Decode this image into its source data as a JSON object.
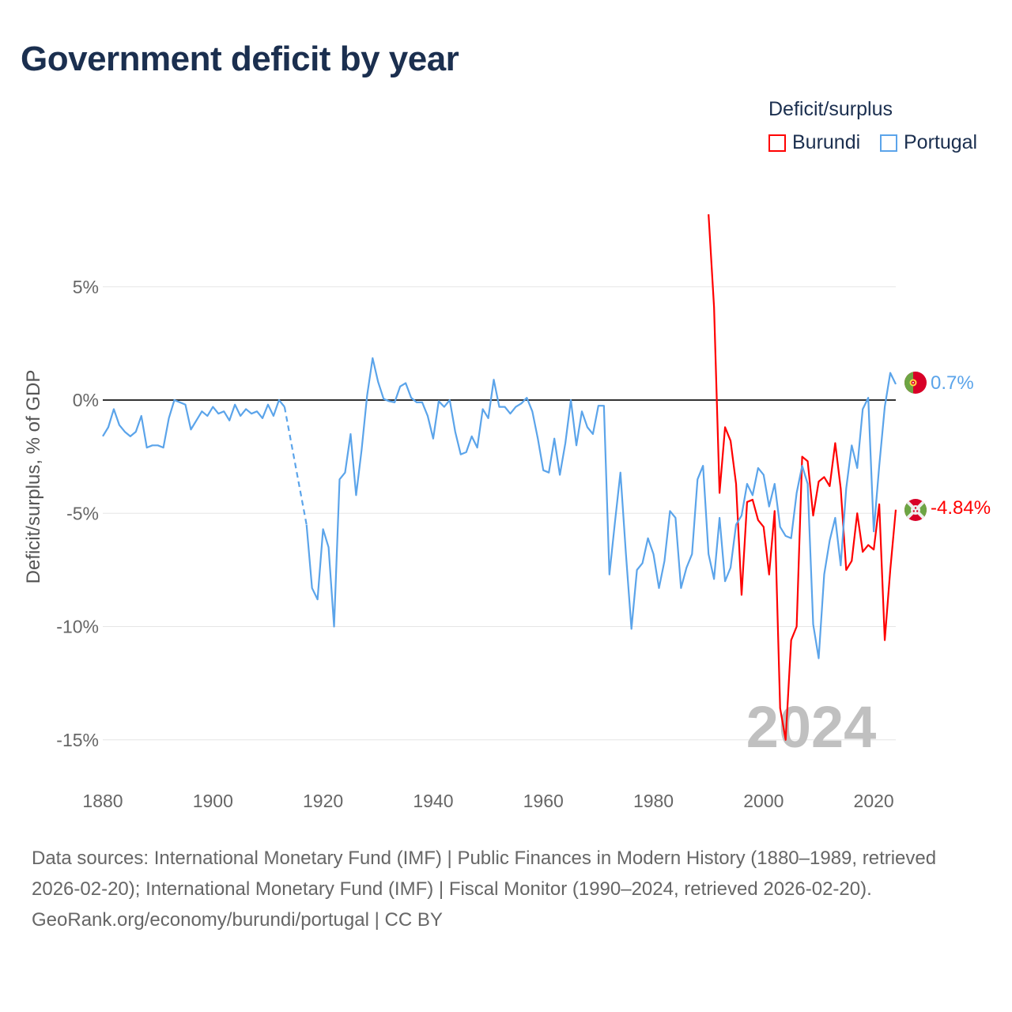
{
  "title": "Government deficit by year",
  "legend": {
    "title": "Deficit/surplus",
    "items": [
      {
        "label": "Burundi",
        "color": "#ff0000"
      },
      {
        "label": "Portugal",
        "color": "#5ba4ea"
      }
    ]
  },
  "watermark_year": "2024",
  "footer": {
    "sources": "Data sources: International Monetary Fund (IMF) | Public Finances in Modern History (1880–1989, retrieved 2026-02-20); International Monetary Fund (IMF) | Fiscal Monitor (1990–2024, retrieved 2026-02-20).",
    "credit": "GeoRank.org/economy/burundi/portugal | CC BY"
  },
  "chart_data": {
    "type": "line",
    "title": "Government deficit by year",
    "xlabel": "",
    "ylabel": "Deficit/surplus, % of GDP",
    "xlim": [
      1880,
      2024
    ],
    "ylim": [
      -17,
      9
    ],
    "x_ticks": [
      1880,
      1900,
      1920,
      1940,
      1960,
      1980,
      2000,
      2020
    ],
    "x_tick_labels": [
      "1880",
      "1900",
      "1920",
      "1940",
      "1960",
      "1980",
      "2000",
      "2020"
    ],
    "y_ticks": [
      5,
      0,
      -5,
      -10,
      -15
    ],
    "y_tick_labels": [
      "5%",
      "0%",
      "-5%",
      "-10%",
      "-15%"
    ],
    "grid": true,
    "legend_position": "top-right",
    "series": [
      {
        "name": "Portugal",
        "color": "#5ba4ea",
        "end_label": "0.7%",
        "start_year": 1880,
        "values": [
          -1.6,
          -1.2,
          -0.4,
          -1.1,
          -1.4,
          -1.6,
          -1.4,
          -0.7,
          -2.1,
          -2.0,
          -2.0,
          -2.1,
          -0.8,
          0.0,
          -0.1,
          -0.2,
          -1.3,
          -0.9,
          -0.5,
          -0.7,
          -0.3,
          -0.6,
          -0.5,
          -0.9,
          -0.2,
          -0.7,
          -0.4,
          -0.6,
          -0.5,
          -0.8,
          -0.2,
          -0.7,
          0.0,
          -0.3,
          null,
          null,
          null,
          -5.5,
          -8.3,
          -8.8,
          -5.7,
          -6.5,
          -10.0,
          -3.5,
          -3.2,
          -1.5,
          -4.2,
          -2.2,
          0.2,
          1.85,
          0.8,
          0.05,
          -0.05,
          -0.1,
          0.6,
          0.75,
          0.1,
          -0.1,
          -0.1,
          -0.7,
          -1.7,
          -0.05,
          -0.3,
          0.0,
          -1.4,
          -2.4,
          -2.3,
          -1.6,
          -2.1,
          -0.4,
          -0.8,
          0.9,
          -0.3,
          -0.3,
          -0.6,
          -0.3,
          -0.15,
          0.1,
          -0.5,
          -1.7,
          -3.1,
          -3.2,
          -1.7,
          -3.3,
          -1.9,
          0.0,
          -2.0,
          -0.5,
          -1.2,
          -1.5,
          -0.25,
          -0.25,
          -7.7,
          -5.4,
          -3.2,
          -6.8,
          -10.1,
          -7.5,
          -7.2,
          -6.1,
          -6.8,
          -8.3,
          -7.1,
          -4.9,
          -5.2,
          -8.3,
          -7.4,
          -6.8,
          -3.5,
          -2.9,
          -6.8,
          -7.9,
          -5.2,
          -8.0,
          -7.4,
          -5.5,
          -5.1,
          -3.7,
          -4.2,
          -3.0,
          -3.3,
          -4.7,
          -3.7,
          -5.6,
          -6.0,
          -6.1,
          -4.1,
          -2.9,
          -3.7,
          -9.9,
          -11.4,
          -7.7,
          -6.2,
          -5.2,
          -7.3,
          -3.9,
          -2.0,
          -3.0,
          -0.4,
          0.1,
          -5.8,
          -2.9,
          -0.3,
          1.2,
          0.7
        ]
      },
      {
        "name": "Burundi",
        "color": "#ff0000",
        "end_label": "-4.84%",
        "start_year": 1990,
        "values": [
          8.2,
          4.1,
          -4.1,
          -1.2,
          -1.8,
          -3.7,
          -8.6,
          -4.5,
          -4.4,
          -5.3,
          -5.6,
          -7.7,
          -4.9,
          -13.6,
          -15.0,
          -10.6,
          -10.0,
          -2.5,
          -2.7,
          -5.1,
          -3.6,
          -3.4,
          -3.8,
          -1.9,
          -3.9,
          -7.5,
          -7.1,
          -5.0,
          -6.7,
          -6.4,
          -6.6,
          -4.6,
          -10.6,
          -7.5,
          -4.84
        ]
      }
    ]
  }
}
